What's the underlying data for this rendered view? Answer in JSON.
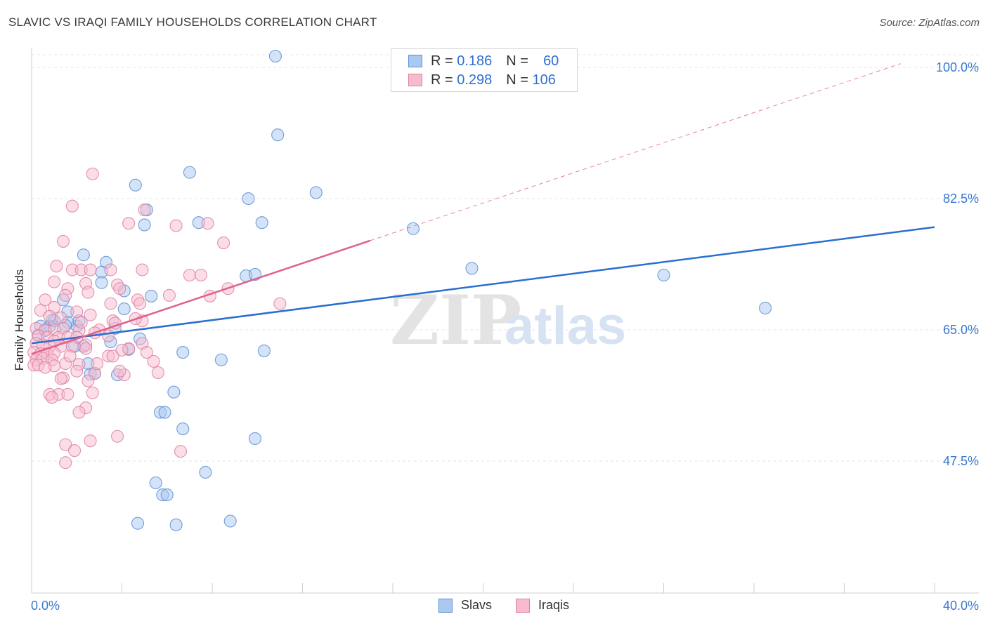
{
  "header": {
    "title": "SLAVIC VS IRAQI FAMILY HOUSEHOLDS CORRELATION CHART",
    "source": "Source: ZipAtlas.com"
  },
  "legend": {
    "r_label": "R =",
    "n_label": "N =",
    "rows": [
      {
        "name": "Slavs",
        "r": "0.186",
        "n": "60"
      },
      {
        "name": "Iraqis",
        "r": "0.298",
        "n": "106"
      }
    ]
  },
  "watermark": {
    "zip": "ZIP",
    "atlas": "atlas"
  },
  "colors": {
    "slavs_fill": "#aac8f0",
    "slavs_stroke": "#5b8fd6",
    "slavs_line": "#2a6fd0",
    "iraqis_fill": "#f6bccd",
    "iraqis_stroke": "#e07fa0",
    "iraqis_line": "#e0608c",
    "axis_text": "#3a78d0",
    "grid": "#e6e6e6"
  },
  "chart_data": {
    "type": "scatter",
    "title": "SLAVIC VS IRAQI FAMILY HOUSEHOLDS CORRELATION CHART",
    "xlabel": "",
    "ylabel": "Family Households",
    "xlim": [
      0,
      40
    ],
    "ylim": [
      30,
      101.5
    ],
    "x_tick_labels": [
      "0.0%",
      "40.0%"
    ],
    "y_ticks": [
      47.5,
      65.0,
      82.5,
      100.0
    ],
    "y_tick_labels": [
      "47.5%",
      "65.0%",
      "82.5%",
      "100.0%"
    ],
    "grid": true,
    "legend_position": "top-center",
    "series": [
      {
        "name": "Slavs",
        "points": [
          [
            10.8,
            101.5
          ],
          [
            10.9,
            91.0
          ],
          [
            7.0,
            86.0
          ],
          [
            4.6,
            84.3
          ],
          [
            12.6,
            83.3
          ],
          [
            9.6,
            82.5
          ],
          [
            5.1,
            81.0
          ],
          [
            5.0,
            79.0
          ],
          [
            7.4,
            79.3
          ],
          [
            10.2,
            79.3
          ],
          [
            16.9,
            78.5
          ],
          [
            2.3,
            75.0
          ],
          [
            3.3,
            74.0
          ],
          [
            3.1,
            72.7
          ],
          [
            19.5,
            73.2
          ],
          [
            3.1,
            71.3
          ],
          [
            9.5,
            72.2
          ],
          [
            9.9,
            72.4
          ],
          [
            28.0,
            72.3
          ],
          [
            4.1,
            70.2
          ],
          [
            5.3,
            69.5
          ],
          [
            1.4,
            69.0
          ],
          [
            1.6,
            67.4
          ],
          [
            4.1,
            67.8
          ],
          [
            32.5,
            67.9
          ],
          [
            0.9,
            66.3
          ],
          [
            0.4,
            65.5
          ],
          [
            0.8,
            65.5
          ],
          [
            2.0,
            65.5
          ],
          [
            3.7,
            65.2
          ],
          [
            0.3,
            64.3
          ],
          [
            4.8,
            63.8
          ],
          [
            3.5,
            63.4
          ],
          [
            4.3,
            62.4
          ],
          [
            2.3,
            62.8
          ],
          [
            1.9,
            62.8
          ],
          [
            10.3,
            62.2
          ],
          [
            6.7,
            62.0
          ],
          [
            8.4,
            61.0
          ],
          [
            2.5,
            60.5
          ],
          [
            2.6,
            59.1
          ],
          [
            3.8,
            59.0
          ],
          [
            2.8,
            59.2
          ],
          [
            6.3,
            56.7
          ],
          [
            5.7,
            54.0
          ],
          [
            5.9,
            54.0
          ],
          [
            6.7,
            51.8
          ],
          [
            9.9,
            50.5
          ],
          [
            7.7,
            46.0
          ],
          [
            5.5,
            44.6
          ],
          [
            5.8,
            43.0
          ],
          [
            6.0,
            43.0
          ],
          [
            4.7,
            39.2
          ],
          [
            6.4,
            39.0
          ],
          [
            8.8,
            39.5
          ],
          [
            1.0,
            66.2
          ],
          [
            1.6,
            66.0
          ],
          [
            2.1,
            66.2
          ],
          [
            1.5,
            65.6
          ],
          [
            0.6,
            64.9
          ]
        ]
      },
      {
        "name": "Iraqis",
        "points": [
          [
            2.7,
            85.8
          ],
          [
            1.8,
            81.5
          ],
          [
            5.0,
            81.0
          ],
          [
            4.3,
            79.2
          ],
          [
            6.4,
            78.9
          ],
          [
            7.8,
            79.2
          ],
          [
            1.4,
            76.8
          ],
          [
            8.5,
            76.6
          ],
          [
            1.1,
            73.5
          ],
          [
            1.8,
            73.0
          ],
          [
            2.2,
            73.0
          ],
          [
            2.6,
            73.0
          ],
          [
            3.5,
            73.0
          ],
          [
            4.9,
            73.0
          ],
          [
            7.0,
            72.3
          ],
          [
            7.5,
            72.3
          ],
          [
            1.0,
            71.4
          ],
          [
            2.4,
            71.2
          ],
          [
            3.8,
            71.0
          ],
          [
            1.6,
            70.5
          ],
          [
            2.5,
            70.0
          ],
          [
            8.7,
            70.5
          ],
          [
            1.5,
            69.6
          ],
          [
            4.7,
            69.0
          ],
          [
            6.1,
            69.6
          ],
          [
            7.9,
            69.5
          ],
          [
            0.6,
            69.0
          ],
          [
            4.8,
            68.5
          ],
          [
            11.0,
            68.5
          ],
          [
            0.4,
            67.6
          ],
          [
            1.0,
            68.0
          ],
          [
            2.0,
            67.4
          ],
          [
            2.6,
            67.0
          ],
          [
            0.8,
            66.8
          ],
          [
            1.3,
            66.6
          ],
          [
            3.6,
            66.2
          ],
          [
            4.9,
            66.2
          ],
          [
            0.2,
            65.2
          ],
          [
            0.6,
            65.0
          ],
          [
            1.0,
            65.0
          ],
          [
            1.4,
            65.2
          ],
          [
            2.1,
            64.9
          ],
          [
            3.0,
            65.0
          ],
          [
            0.3,
            64.2
          ],
          [
            0.7,
            64.0
          ],
          [
            1.2,
            64.0
          ],
          [
            1.6,
            64.0
          ],
          [
            2.0,
            64.0
          ],
          [
            3.4,
            64.2
          ],
          [
            0.2,
            63.2
          ],
          [
            0.5,
            63.0
          ],
          [
            0.8,
            62.8
          ],
          [
            1.3,
            62.8
          ],
          [
            1.8,
            62.8
          ],
          [
            2.4,
            63.0
          ],
          [
            4.3,
            62.5
          ],
          [
            0.1,
            62.0
          ],
          [
            0.4,
            61.8
          ],
          [
            0.7,
            61.8
          ],
          [
            1.0,
            61.9
          ],
          [
            0.2,
            61.0
          ],
          [
            0.5,
            61.2
          ],
          [
            0.9,
            61.0
          ],
          [
            1.5,
            60.5
          ],
          [
            2.1,
            60.4
          ],
          [
            3.4,
            61.5
          ],
          [
            5.4,
            60.8
          ],
          [
            0.1,
            60.3
          ],
          [
            0.3,
            60.3
          ],
          [
            1.0,
            60.2
          ],
          [
            2.0,
            59.5
          ],
          [
            2.8,
            59.2
          ],
          [
            4.1,
            59.0
          ],
          [
            5.6,
            59.3
          ],
          [
            1.4,
            58.6
          ],
          [
            2.5,
            58.2
          ],
          [
            0.8,
            56.4
          ],
          [
            1.2,
            56.4
          ],
          [
            1.6,
            56.4
          ],
          [
            2.7,
            56.6
          ],
          [
            0.9,
            56.0
          ],
          [
            2.4,
            54.6
          ],
          [
            2.1,
            54.0
          ],
          [
            3.8,
            50.8
          ],
          [
            1.5,
            49.7
          ],
          [
            2.6,
            50.2
          ],
          [
            1.9,
            48.9
          ],
          [
            6.6,
            48.8
          ],
          [
            1.5,
            47.3
          ],
          [
            4.9,
            63.2
          ],
          [
            3.7,
            65.9
          ],
          [
            3.6,
            61.5
          ],
          [
            5.1,
            62.0
          ],
          [
            4.0,
            62.3
          ],
          [
            4.6,
            66.5
          ],
          [
            3.5,
            68.5
          ],
          [
            2.2,
            66.0
          ],
          [
            1.0,
            63.5
          ],
          [
            2.9,
            60.5
          ],
          [
            1.3,
            58.5
          ],
          [
            3.9,
            59.5
          ],
          [
            2.4,
            62.5
          ],
          [
            0.6,
            60.0
          ],
          [
            1.7,
            61.5
          ],
          [
            2.8,
            64.6
          ],
          [
            3.9,
            70.5
          ]
        ]
      }
    ],
    "trendlines": [
      {
        "name": "Slavs",
        "x0": 0,
        "y0": 63.2,
        "x1": 40,
        "y1": 78.7,
        "dashed_from_x": null
      },
      {
        "name": "Iraqis",
        "x0": 0,
        "y0": 61.8,
        "x1": 15,
        "y1": 76.9,
        "dashed_to_x": 38.5,
        "dashed_to_y": 100.5
      }
    ]
  }
}
